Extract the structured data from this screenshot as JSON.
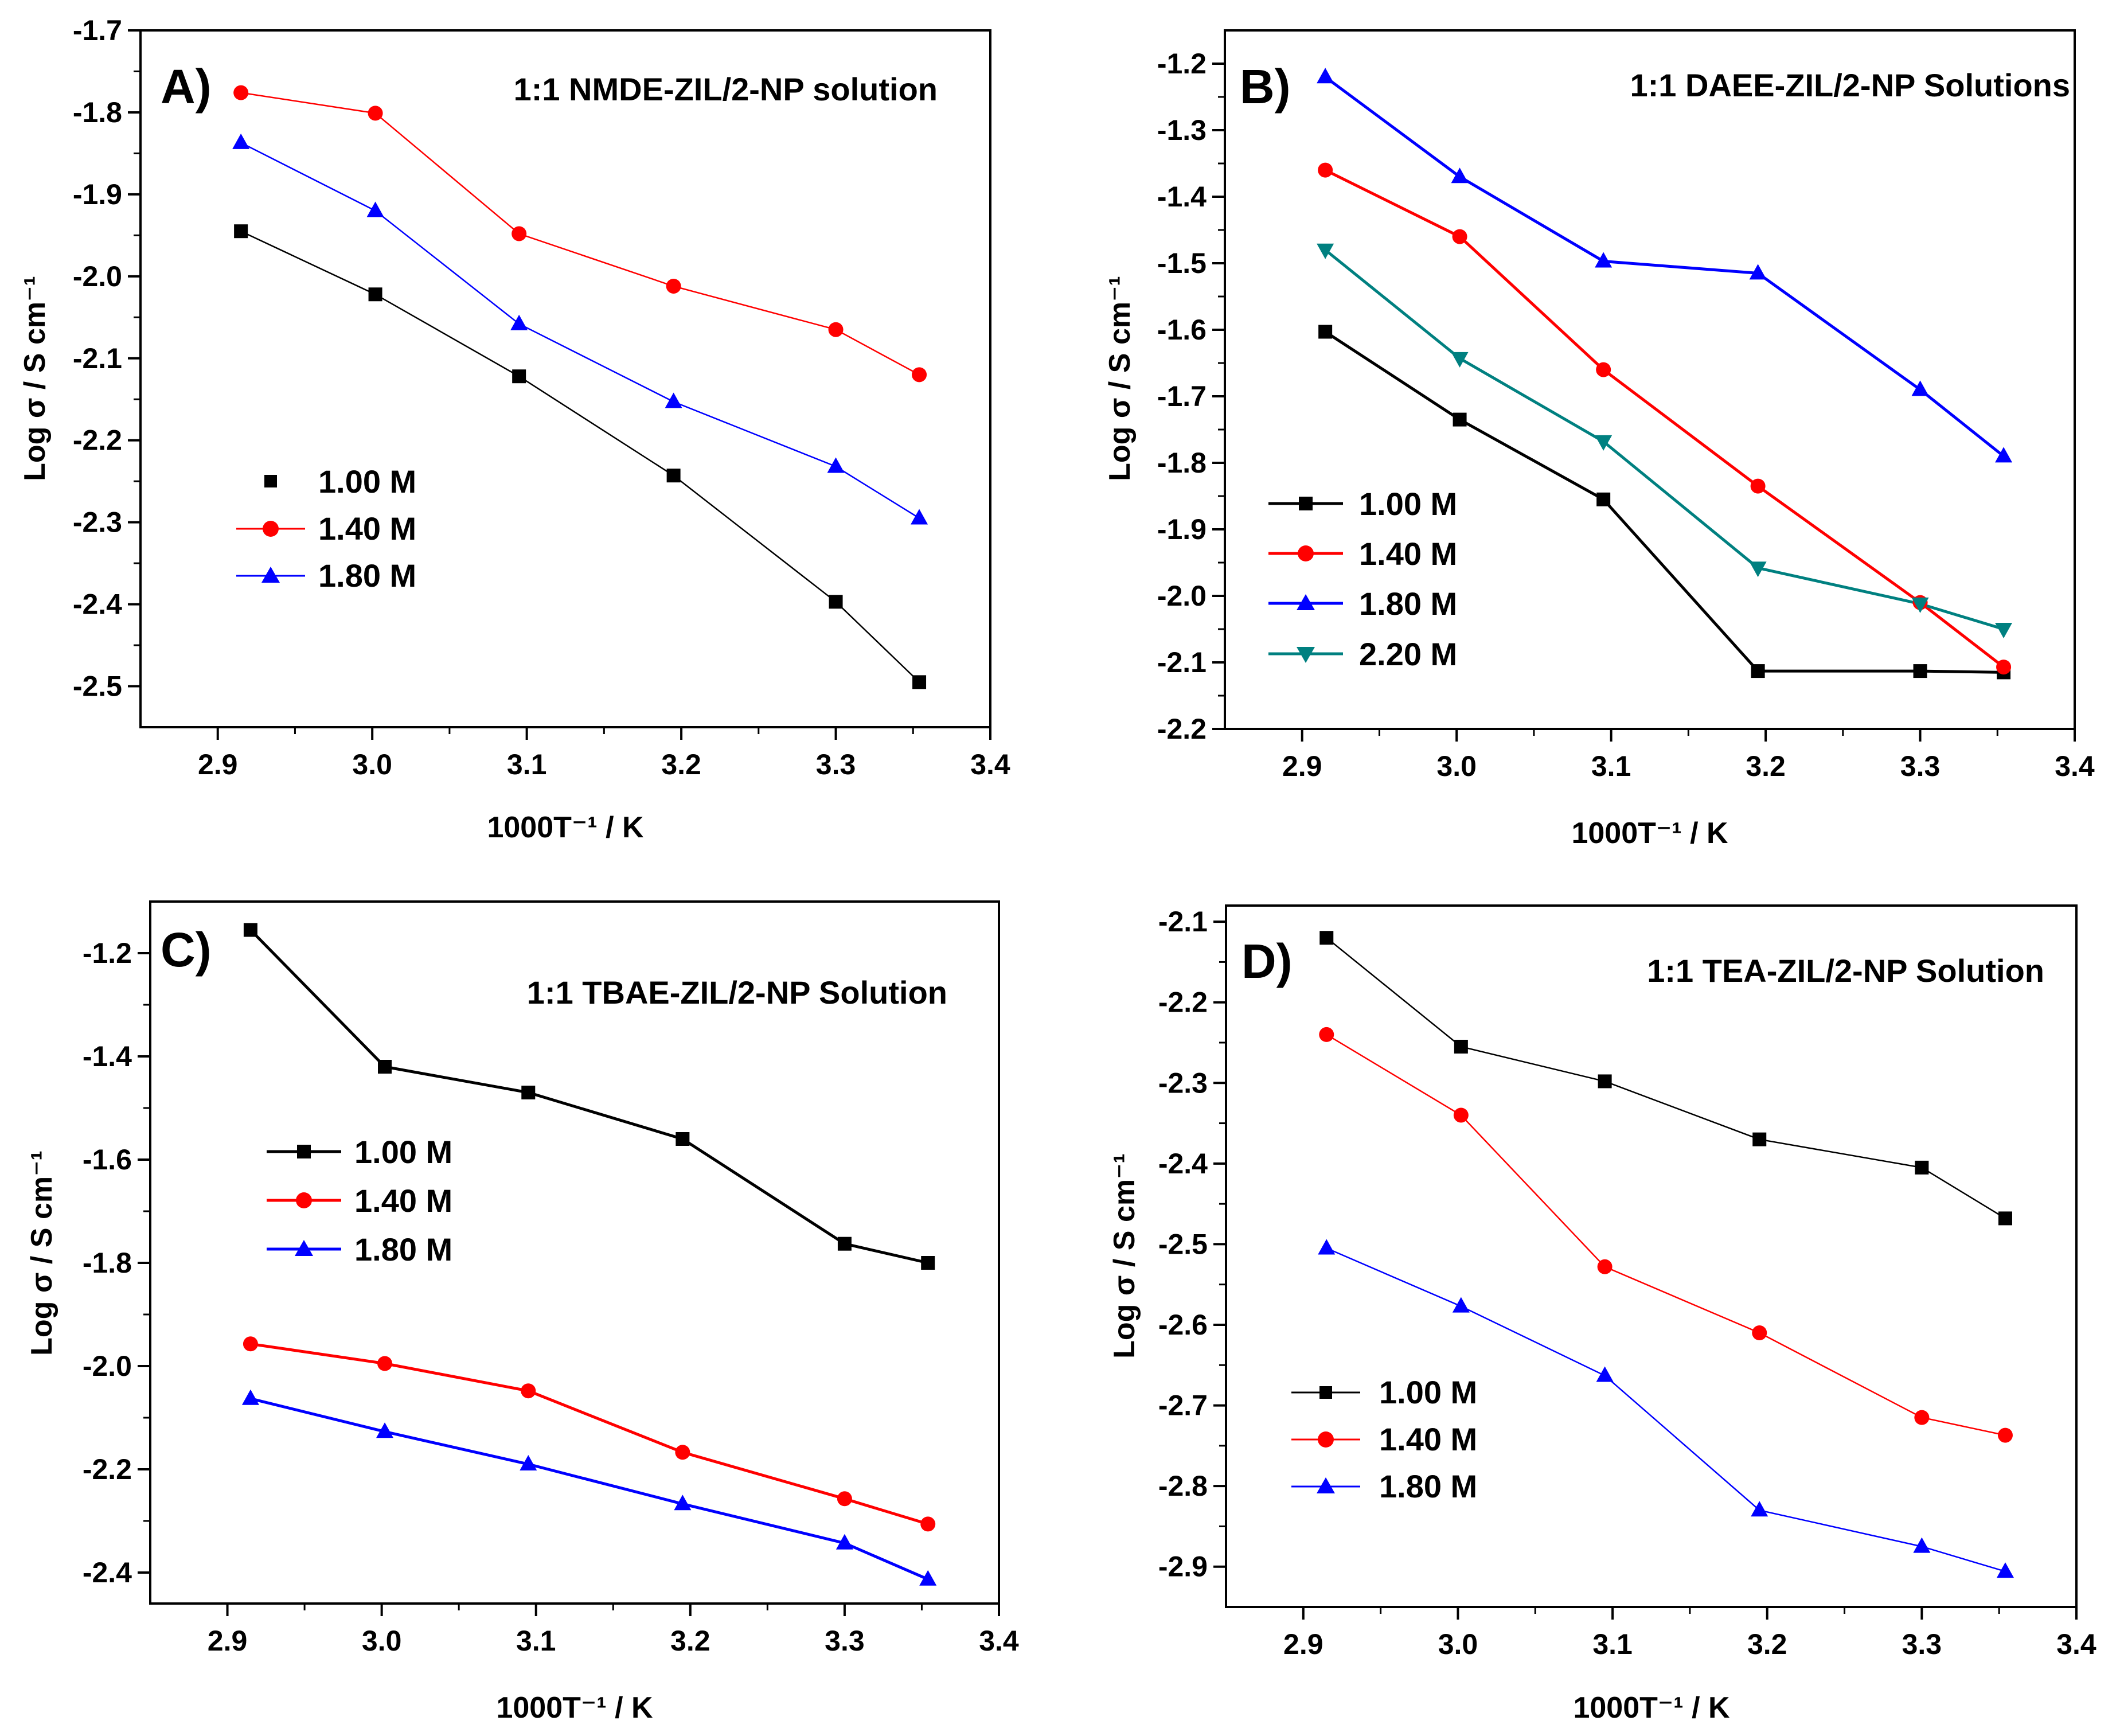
{
  "chart_data": [
    {
      "type": "line",
      "panel_label": "A)",
      "title": "1:1 NMDE-ZIL/2-NP solution",
      "xlabel": "1000T⁻¹ / K",
      "ylabel": "Log σ / S cm⁻¹",
      "xlim": [
        2.85,
        3.4
      ],
      "ylim": [
        -2.55,
        -1.7
      ],
      "xticks": [
        2.9,
        3.0,
        3.1,
        3.2,
        3.3,
        3.4
      ],
      "xtick_labels": [
        "2.9",
        "3.0",
        "3.1",
        "3.2",
        "3.3",
        "3.4"
      ],
      "yticks": [
        -2.5,
        -2.4,
        -2.3,
        -2.2,
        -2.1,
        -2.0,
        -1.9,
        -1.8,
        -1.7
      ],
      "ytick_labels": [
        "-2.5",
        "-2.4",
        "-2.3",
        "-2.2",
        "-2.1",
        "-2.0",
        "-1.9",
        "-1.8",
        "-1.7"
      ],
      "legend_position": "middle-left",
      "x": [
        2.915,
        3.002,
        3.095,
        3.195,
        3.3,
        3.354
      ],
      "series": [
        {
          "name": "1.00 M",
          "color": "#000000",
          "marker": "square",
          "values": [
            -1.945,
            -2.022,
            -2.122,
            -2.243,
            -2.397,
            -2.495
          ]
        },
        {
          "name": "1.40 M",
          "color": "#ff0000",
          "marker": "circle",
          "values": [
            -1.776,
            -1.801,
            -1.948,
            -2.012,
            -2.065,
            -2.12
          ]
        },
        {
          "name": "1.80 M",
          "color": "#0000ff",
          "marker": "triangle-up",
          "values": [
            -1.837,
            -1.92,
            -2.058,
            -2.153,
            -2.232,
            -2.295
          ]
        }
      ]
    },
    {
      "type": "line",
      "panel_label": "B)",
      "title": "1:1 DAEE-ZIL/2-NP Solutions",
      "xlabel": "1000T⁻¹ / K",
      "ylabel": "Log σ / S cm⁻¹",
      "xlim": [
        2.85,
        3.4
      ],
      "ylim": [
        -2.2,
        -1.15
      ],
      "xticks": [
        2.9,
        3.0,
        3.1,
        3.2,
        3.3,
        3.4
      ],
      "xtick_labels": [
        "2.9",
        "3.0",
        "3.1",
        "3.2",
        "3.3",
        "3.4"
      ],
      "yticks": [
        -2.2,
        -2.1,
        -2.0,
        -1.9,
        -1.8,
        -1.7,
        -1.6,
        -1.5,
        -1.4,
        -1.3,
        -1.2
      ],
      "ytick_labels": [
        "-2.2",
        "-2.1",
        "-2.0",
        "-1.9",
        "-1.8",
        "-1.7",
        "-1.6",
        "-1.5",
        "-1.4",
        "-1.3",
        "-1.2"
      ],
      "legend_position": "bottom-left",
      "x": [
        2.915,
        3.002,
        3.095,
        3.195,
        3.3,
        3.354
      ],
      "series": [
        {
          "name": "1.00 M",
          "color": "#000000",
          "marker": "square",
          "values": [
            -1.603,
            -1.735,
            -1.855,
            -2.113,
            -2.113,
            -2.115
          ]
        },
        {
          "name": "1.40 M",
          "color": "#ff0000",
          "marker": "circle",
          "values": [
            -1.36,
            -1.46,
            -1.66,
            -1.835,
            -2.01,
            -2.107
          ]
        },
        {
          "name": "1.80 M",
          "color": "#0000ff",
          "marker": "triangle-up",
          "values": [
            -1.22,
            -1.37,
            -1.497,
            -1.515,
            -1.69,
            -1.79
          ]
        },
        {
          "name": "2.20 M",
          "color": "#008080",
          "marker": "triangle-down",
          "values": [
            -1.48,
            -1.643,
            -1.768,
            -1.958,
            -2.012,
            -2.05
          ]
        }
      ]
    },
    {
      "type": "line",
      "panel_label": "C)",
      "title": "1:1 TBAE-ZIL/2-NP Solution",
      "xlabel": "1000T⁻¹ / K",
      "ylabel": "Log σ / S cm⁻¹",
      "xlim": [
        2.85,
        3.4
      ],
      "ylim": [
        -2.46,
        -1.1
      ],
      "xticks": [
        2.9,
        3.0,
        3.1,
        3.2,
        3.3,
        3.4
      ],
      "xtick_labels": [
        "2.9",
        "3.0",
        "3.1",
        "3.2",
        "3.3",
        "3.4"
      ],
      "yticks": [
        -2.4,
        -2.2,
        -2.0,
        -1.8,
        -1.6,
        -1.4,
        -1.2
      ],
      "ytick_labels": [
        "-2.4",
        "-2.2",
        "-2.0",
        "-1.8",
        "-1.6",
        "-1.4",
        "-1.2"
      ],
      "legend_position": "middle-left",
      "x": [
        2.915,
        3.002,
        3.095,
        3.195,
        3.3,
        3.354
      ],
      "series": [
        {
          "name": "1.00 M",
          "color": "#000000",
          "marker": "square",
          "values": [
            -1.155,
            -1.42,
            -1.47,
            -1.56,
            -1.763,
            -1.8
          ]
        },
        {
          "name": "1.40 M",
          "color": "#ff0000",
          "marker": "circle",
          "values": [
            -1.957,
            -1.995,
            -2.048,
            -2.167,
            -2.257,
            -2.306
          ]
        },
        {
          "name": "1.80 M",
          "color": "#0000ff",
          "marker": "triangle-up",
          "values": [
            -2.063,
            -2.127,
            -2.19,
            -2.267,
            -2.343,
            -2.413
          ]
        }
      ]
    },
    {
      "type": "line",
      "panel_label": "D)",
      "title": "1:1 TEA-ZIL/2-NP Solution",
      "xlabel": "1000T⁻¹ / K",
      "ylabel": "Log σ / S cm⁻¹",
      "xlim": [
        2.85,
        3.4
      ],
      "ylim": [
        -2.95,
        -2.08
      ],
      "xticks": [
        2.9,
        3.0,
        3.1,
        3.2,
        3.3,
        3.4
      ],
      "xtick_labels": [
        "2.9",
        "3.0",
        "3.1",
        "3.2",
        "3.3",
        "3.4"
      ],
      "yticks": [
        -2.9,
        -2.8,
        -2.7,
        -2.6,
        -2.5,
        -2.4,
        -2.3,
        -2.2,
        -2.1
      ],
      "ytick_labels": [
        "-2.9",
        "-2.8",
        "-2.7",
        "-2.6",
        "-2.5",
        "-2.4",
        "-2.3",
        "-2.2",
        "-2.1"
      ],
      "legend_position": "bottom-left",
      "x": [
        2.915,
        3.002,
        3.095,
        3.195,
        3.3,
        3.354
      ],
      "series": [
        {
          "name": "1.00 M",
          "color": "#000000",
          "marker": "square",
          "values": [
            -2.12,
            -2.255,
            -2.298,
            -2.37,
            -2.405,
            -2.468
          ]
        },
        {
          "name": "1.40 M",
          "color": "#ff0000",
          "marker": "circle",
          "values": [
            -2.24,
            -2.34,
            -2.528,
            -2.61,
            -2.715,
            -2.737
          ]
        },
        {
          "name": "1.80 M",
          "color": "#0000ff",
          "marker": "triangle-up",
          "values": [
            -2.505,
            -2.577,
            -2.663,
            -2.83,
            -2.875,
            -2.906
          ]
        }
      ]
    }
  ]
}
